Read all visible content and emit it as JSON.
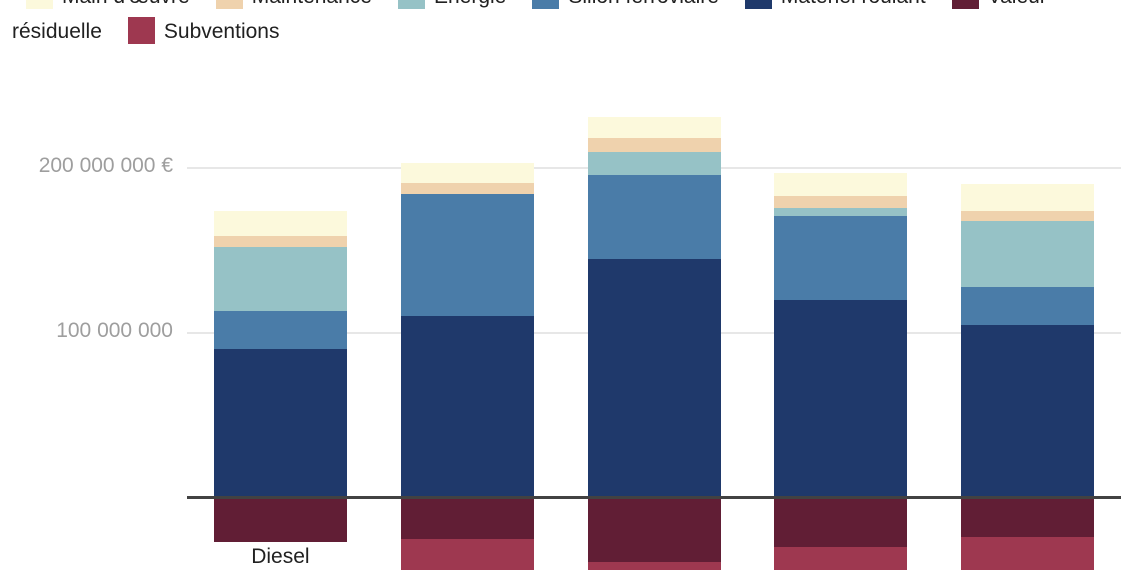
{
  "chart_data": {
    "type": "bar",
    "stacked": true,
    "orientation": "vertical",
    "values_unit": "millions of EUR",
    "categories": [
      "Diesel",
      "",
      "",
      "",
      ""
    ],
    "series": [
      {
        "name": "Main d'œuvre",
        "color": "#FCF9DC",
        "values": [
          15,
          12,
          13,
          14,
          16
        ]
      },
      {
        "name": "Maintenance",
        "color": "#EFD2AD",
        "values": [
          7,
          7,
          8,
          7,
          6
        ]
      },
      {
        "name": "Énergie",
        "color": "#96C2C6",
        "values": [
          39,
          0,
          14,
          5,
          40
        ]
      },
      {
        "name": "Sillon ferroviaire",
        "color": "#4A7CA8",
        "values": [
          23,
          74,
          51,
          51,
          23
        ]
      },
      {
        "name": "Matériel roulant",
        "color": "#1F396B",
        "values": [
          90,
          110,
          145,
          120,
          105
        ]
      },
      {
        "name": "Valeur résiduelle",
        "color": "#611E35",
        "values": [
          -27,
          -25,
          -39,
          -30,
          -24
        ]
      },
      {
        "name": "Subventions",
        "color": "#9E3850",
        "values": [
          0,
          -25,
          -10,
          -20,
          -25
        ]
      }
    ],
    "y_axis": {
      "ticks": [
        {
          "label": "200 000 000 €",
          "value": 200000000
        },
        {
          "label": "100 000 000",
          "value": 100000000
        }
      ],
      "baseline_value": 0
    },
    "legend_position": "top",
    "grid": true,
    "baseline_color": "#424242",
    "gridline_color": "#E7E7E7",
    "tick_label_color": "#9E9E9E",
    "legend_text_color": "#212121"
  }
}
